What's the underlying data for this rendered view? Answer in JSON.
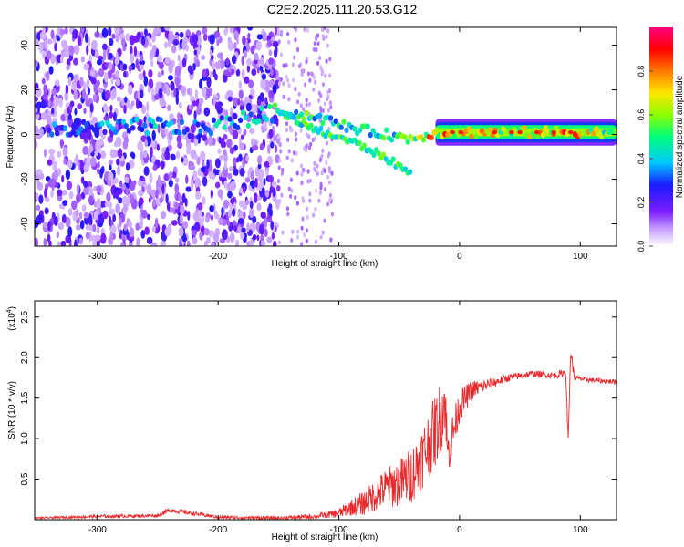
{
  "title": "C2E2.2025.111.20.53.G12",
  "colors": {
    "snr_line": "#e8282a",
    "axis": "#000000"
  },
  "chart_data": [
    {
      "type": "heatmap",
      "xlabel": "Height of straight line (km)",
      "ylabel": "Frequency (Hz)",
      "xlim": [
        -352,
        130
      ],
      "ylim": [
        -50,
        48
      ],
      "x_ticks": [
        -300,
        -200,
        -100,
        0,
        100
      ],
      "y_ticks": [
        -40,
        -20,
        0,
        20,
        40
      ],
      "colorbar": {
        "label": "Normalized spectral amplitude",
        "range": [
          0.0,
          1.0
        ],
        "ticks": [
          0.0,
          0.2,
          0.4,
          0.6,
          0.8
        ],
        "tick_labels": [
          "0.0",
          "0.2",
          "0.4",
          "0.6",
          "0.8"
        ],
        "colormap": [
          "#ffffff",
          "#7a1cff",
          "#1a1aff",
          "#00c8ff",
          "#00ff7a",
          "#8cff00",
          "#ffe600",
          "#ff7a00",
          "#ff0000",
          "#ff007f"
        ]
      },
      "signal_track": [
        {
          "x": -320,
          "freq": 2,
          "amp": 0.35
        },
        {
          "x": -280,
          "freq": 3,
          "amp": 0.4
        },
        {
          "x": -250,
          "freq": 4,
          "amp": 0.45
        },
        {
          "x": -220,
          "freq": 2,
          "amp": 0.35
        },
        {
          "x": -150,
          "freq": 10,
          "amp": 0.6
        },
        {
          "x": -120,
          "freq": 8,
          "amp": 0.55
        },
        {
          "x": -90,
          "freq": 3,
          "amp": 0.5
        },
        {
          "x": -60,
          "freq": 0,
          "amp": 0.55
        },
        {
          "x": -40,
          "freq": -2,
          "amp": 0.6
        },
        {
          "x": -20,
          "freq": 1,
          "amp": 0.85
        },
        {
          "x": 0,
          "freq": 1,
          "amp": 0.8
        },
        {
          "x": 50,
          "freq": 1,
          "amp": 0.7
        },
        {
          "x": 90,
          "freq": 1,
          "amp": 0.85
        },
        {
          "x": 130,
          "freq": 1,
          "amp": 0.6
        }
      ],
      "branch_track": [
        {
          "x": -140,
          "freq": 8
        },
        {
          "x": -120,
          "freq": 2
        },
        {
          "x": -90,
          "freq": -3
        },
        {
          "x": -70,
          "freq": -8
        },
        {
          "x": -50,
          "freq": -14
        },
        {
          "x": -40,
          "freq": -18
        }
      ]
    },
    {
      "type": "line",
      "xlabel": "Height of straight line (km)",
      "ylabel": "SNR (10 * v/v)",
      "scale_label": "(x10",
      "scale_exponent": "4",
      "xlim": [
        -352,
        130
      ],
      "ylim": [
        0,
        2.7
      ],
      "x_ticks": [
        -300,
        -200,
        -100,
        0,
        100
      ],
      "y_ticks": [
        0.5,
        1.0,
        1.5,
        2.0,
        2.5
      ],
      "series": [
        {
          "x": [
            -352,
            -300,
            -250,
            -240,
            -200,
            -150,
            -120,
            -110,
            -100,
            -90,
            -80,
            -70,
            -60,
            -50,
            -40,
            -30,
            -20,
            -15,
            -12,
            -10,
            0,
            10,
            20,
            30,
            40,
            60,
            80,
            88,
            90,
            92,
            95,
            100,
            110,
            130
          ],
          "y": [
            0.02,
            0.04,
            0.05,
            0.12,
            0.03,
            0.02,
            0.04,
            0.06,
            0.08,
            0.15,
            0.2,
            0.3,
            0.4,
            0.45,
            0.55,
            0.8,
            1.1,
            1.3,
            1.5,
            0.8,
            1.4,
            1.6,
            1.65,
            1.7,
            1.75,
            1.8,
            1.78,
            1.82,
            0.95,
            2.1,
            1.75,
            1.74,
            1.72,
            1.7
          ],
          "noise": [
            0.01,
            0.02,
            0.02,
            0.03,
            0.02,
            0.02,
            0.03,
            0.04,
            0.06,
            0.1,
            0.15,
            0.2,
            0.25,
            0.3,
            0.35,
            0.4,
            0.45,
            0.45,
            0.4,
            0.3,
            0.2,
            0.12,
            0.08,
            0.06,
            0.05,
            0.04,
            0.04,
            0.05,
            0.05,
            0.1,
            0.04,
            0.03,
            0.03,
            0.03
          ]
        }
      ]
    }
  ]
}
